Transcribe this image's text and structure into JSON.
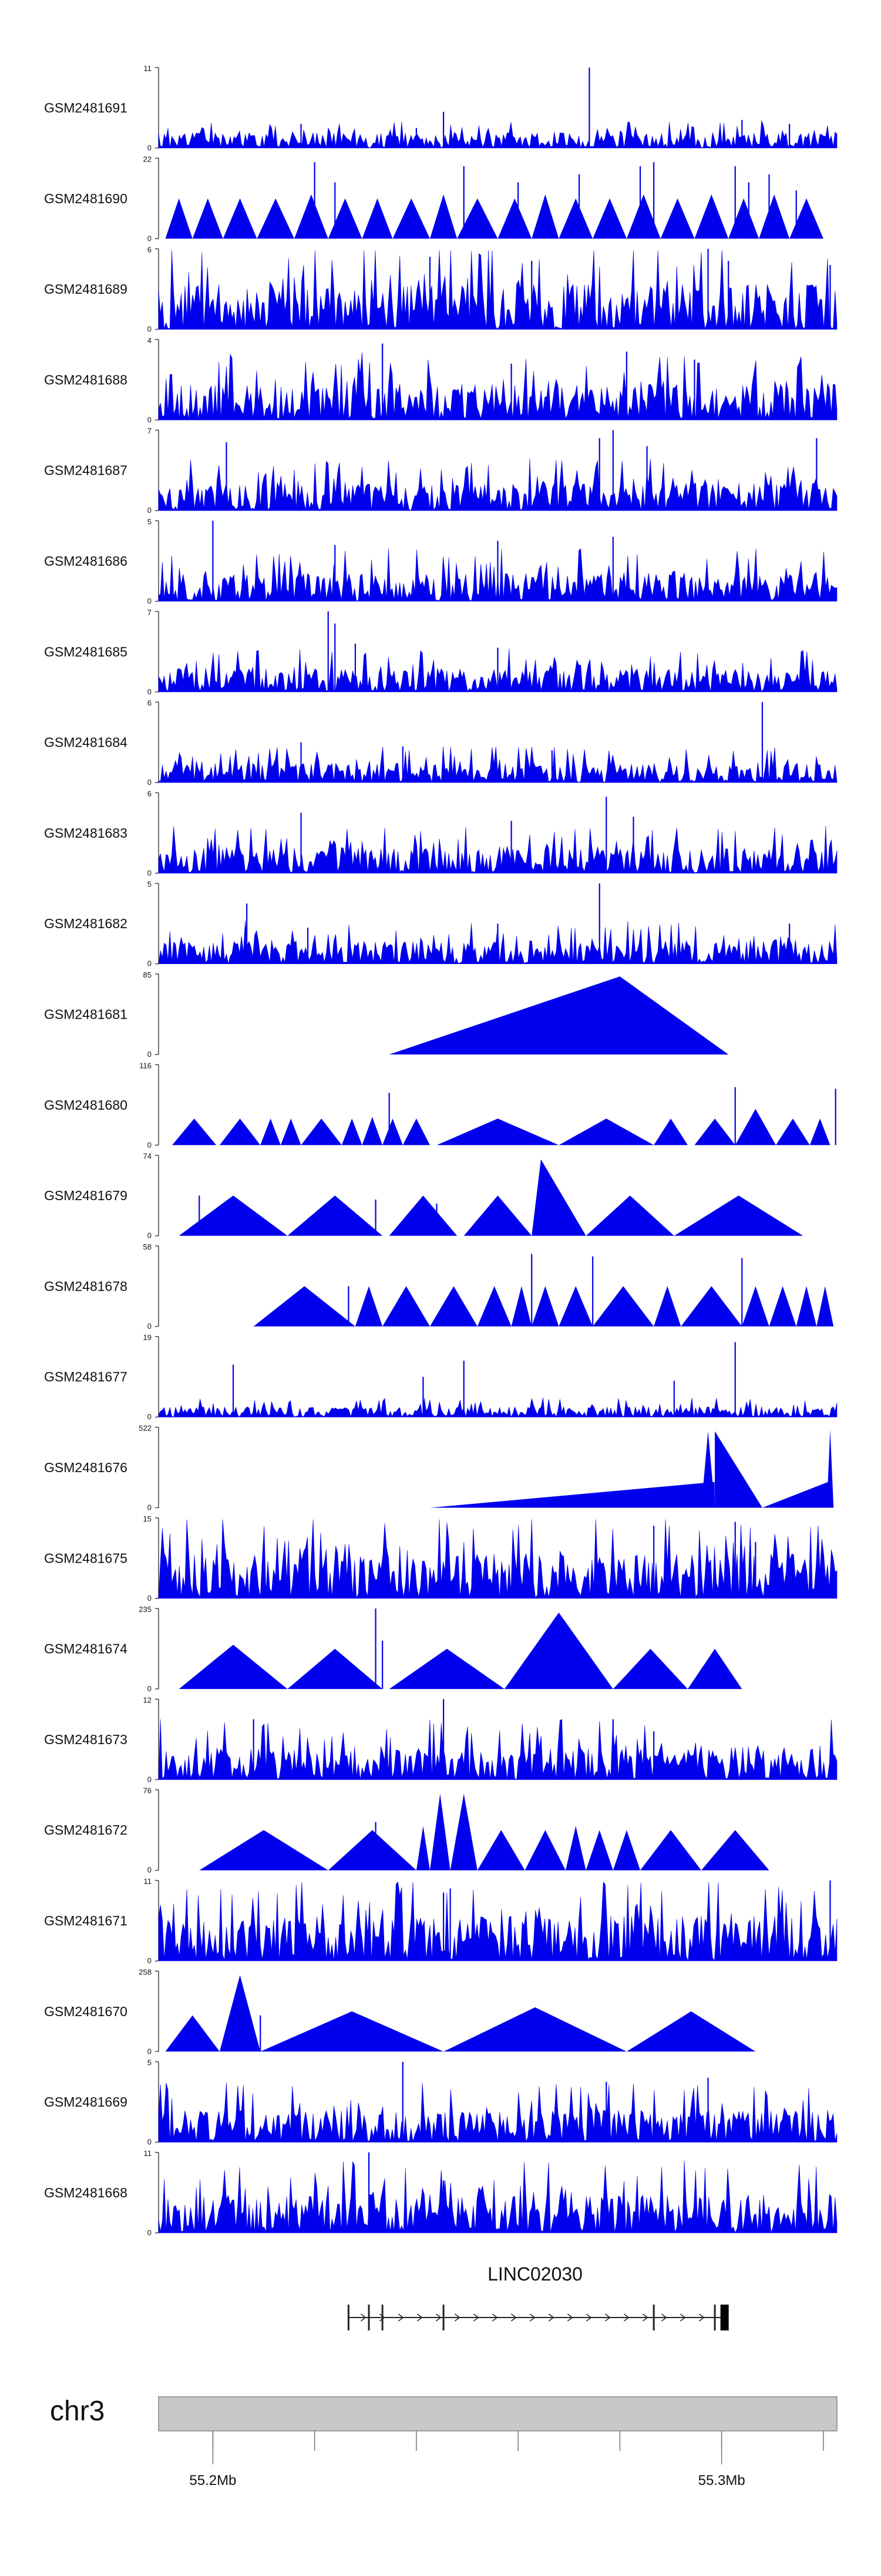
{
  "colors": {
    "track_fill": "#0000ee",
    "axis": "#444444",
    "chrom_band": "#c8c8c8",
    "gene": "#222222"
  },
  "chart_data": {
    "type": "area",
    "tracks": [
      {
        "name": "GSM2481691",
        "ymax": "11",
        "ymin": "0",
        "style": "noise",
        "level": 0.12,
        "seed": 11,
        "peaks": [
          [
            0.42,
            0.45
          ],
          [
            0.21,
            0.3
          ],
          [
            0.38,
            0.25
          ],
          [
            0.635,
            1.0
          ],
          [
            0.86,
            0.35
          ],
          [
            0.93,
            0.3
          ]
        ]
      },
      {
        "name": "GSM2481690",
        "ymax": "22",
        "ymin": "0",
        "style": "tri",
        "seed": 12,
        "tri": [
          [
            0.01,
            0.05,
            0.5
          ],
          [
            0.05,
            0.095,
            0.5
          ],
          [
            0.095,
            0.145,
            0.5
          ],
          [
            0.145,
            0.2,
            0.5
          ],
          [
            0.2,
            0.25,
            0.55
          ],
          [
            0.25,
            0.3,
            0.5
          ],
          [
            0.3,
            0.345,
            0.5
          ],
          [
            0.345,
            0.4,
            0.5
          ],
          [
            0.4,
            0.44,
            0.55
          ],
          [
            0.44,
            0.5,
            0.5
          ],
          [
            0.5,
            0.55,
            0.5
          ],
          [
            0.55,
            0.59,
            0.55
          ],
          [
            0.59,
            0.64,
            0.5
          ],
          [
            0.64,
            0.69,
            0.5
          ],
          [
            0.69,
            0.74,
            0.55
          ],
          [
            0.74,
            0.79,
            0.5
          ],
          [
            0.79,
            0.84,
            0.55
          ],
          [
            0.84,
            0.885,
            0.5
          ],
          [
            0.885,
            0.93,
            0.55
          ],
          [
            0.93,
            0.98,
            0.5
          ]
        ],
        "peaks": [
          [
            0.23,
            0.95
          ],
          [
            0.26,
            0.7
          ],
          [
            0.45,
            0.9
          ],
          [
            0.53,
            0.7
          ],
          [
            0.62,
            0.8
          ],
          [
            0.71,
            0.9
          ],
          [
            0.73,
            0.95
          ],
          [
            0.85,
            0.9
          ],
          [
            0.87,
            0.7
          ],
          [
            0.9,
            0.8
          ],
          [
            0.94,
            0.6
          ]
        ]
      },
      {
        "name": "GSM2481689",
        "ymax": "6",
        "ymin": "0",
        "style": "noise",
        "level": 0.35,
        "seed": 13,
        "peaks": [
          [
            0.4,
            0.9
          ],
          [
            0.55,
            0.85
          ],
          [
            0.81,
            1.0
          ],
          [
            0.84,
            0.85
          ],
          [
            0.99,
            0.8
          ]
        ]
      },
      {
        "name": "GSM2481688",
        "ymax": "4",
        "ymin": "0",
        "style": "noise",
        "level": 0.28,
        "seed": 14,
        "peaks": [
          [
            0.33,
            0.95
          ],
          [
            0.52,
            0.7
          ],
          [
            0.69,
            0.85
          ],
          [
            0.79,
            0.75
          ]
        ]
      },
      {
        "name": "GSM2481687",
        "ymax": "7",
        "ymin": "0",
        "style": "noise",
        "level": 0.22,
        "seed": 15,
        "peaks": [
          [
            0.1,
            0.85
          ],
          [
            0.65,
            0.9
          ],
          [
            0.67,
            1.0
          ],
          [
            0.72,
            0.8
          ],
          [
            0.97,
            0.9
          ]
        ]
      },
      {
        "name": "GSM2481686",
        "ymax": "5",
        "ymin": "0",
        "style": "noise",
        "level": 0.22,
        "seed": 16,
        "peaks": [
          [
            0.08,
            1.0
          ],
          [
            0.26,
            0.7
          ],
          [
            0.5,
            0.75
          ],
          [
            0.67,
            0.8
          ]
        ]
      },
      {
        "name": "GSM2481685",
        "ymax": "7",
        "ymin": "0",
        "style": "noise",
        "level": 0.18,
        "seed": 17,
        "peaks": [
          [
            0.25,
            1.0
          ],
          [
            0.26,
            0.85
          ],
          [
            0.29,
            0.6
          ],
          [
            0.5,
            0.55
          ]
        ]
      },
      {
        "name": "GSM2481684",
        "ymax": "6",
        "ymin": "0",
        "style": "noise",
        "level": 0.15,
        "seed": 18,
        "peaks": [
          [
            0.21,
            0.5
          ],
          [
            0.36,
            0.45
          ],
          [
            0.58,
            0.4
          ],
          [
            0.89,
            1.0
          ]
        ]
      },
      {
        "name": "GSM2481683",
        "ymax": "6",
        "ymin": "0",
        "style": "noise",
        "level": 0.2,
        "seed": 19,
        "peaks": [
          [
            0.21,
            0.75
          ],
          [
            0.52,
            0.65
          ],
          [
            0.66,
            0.95
          ],
          [
            0.7,
            0.7
          ]
        ]
      },
      {
        "name": "GSM2481682",
        "ymax": "5",
        "ymin": "0",
        "style": "noise",
        "level": 0.18,
        "seed": 20,
        "peaks": [
          [
            0.13,
            0.75
          ],
          [
            0.22,
            0.45
          ],
          [
            0.5,
            0.5
          ],
          [
            0.65,
            1.0
          ],
          [
            0.93,
            0.5
          ]
        ]
      },
      {
        "name": "GSM2481681",
        "ymax": "85",
        "ymin": "0",
        "style": "tri",
        "seed": 21,
        "tri": [
          [
            0.34,
            0.84,
            0.97,
            0.68
          ]
        ],
        "peaks": []
      },
      {
        "name": "GSM2481680",
        "ymax": "116",
        "ymin": "0",
        "style": "tri",
        "seed": 22,
        "tri": [
          [
            0.02,
            0.085,
            0.33
          ],
          [
            0.09,
            0.15,
            0.33
          ],
          [
            0.15,
            0.18,
            0.33
          ],
          [
            0.18,
            0.21,
            0.33
          ],
          [
            0.21,
            0.27,
            0.33
          ],
          [
            0.27,
            0.3,
            0.33
          ],
          [
            0.3,
            0.33,
            0.35
          ],
          [
            0.33,
            0.36,
            0.33
          ],
          [
            0.36,
            0.4,
            0.33
          ],
          [
            0.41,
            0.59,
            0.33
          ],
          [
            0.59,
            0.73,
            0.33
          ],
          [
            0.73,
            0.78,
            0.33
          ],
          [
            0.79,
            0.85,
            0.33
          ],
          [
            0.85,
            0.91,
            0.45
          ],
          [
            0.91,
            0.96,
            0.33
          ],
          [
            0.96,
            0.99,
            0.33
          ]
        ],
        "peaks": [
          [
            0.34,
            0.65
          ],
          [
            0.85,
            0.72
          ],
          [
            0.998,
            0.7
          ]
        ]
      },
      {
        "name": "GSM2481679",
        "ymax": "74",
        "ymin": "0",
        "style": "tri",
        "seed": 23,
        "tri": [
          [
            0.03,
            0.19,
            0.5
          ],
          [
            0.19,
            0.33,
            0.5
          ],
          [
            0.34,
            0.44,
            0.5
          ],
          [
            0.45,
            0.55,
            0.5
          ],
          [
            0.55,
            0.63,
            0.95,
            0.17
          ],
          [
            0.63,
            0.76,
            0.5
          ],
          [
            0.76,
            0.95,
            0.5
          ]
        ],
        "peaks": [
          [
            0.06,
            0.5
          ],
          [
            0.32,
            0.45
          ],
          [
            0.41,
            0.4
          ]
        ]
      },
      {
        "name": "GSM2481678",
        "ymax": "58",
        "ymin": "0",
        "style": "tri",
        "seed": 24,
        "tri": [
          [
            0.14,
            0.29,
            0.5
          ],
          [
            0.29,
            0.33,
            0.5
          ],
          [
            0.33,
            0.4,
            0.5
          ],
          [
            0.4,
            0.47,
            0.5
          ],
          [
            0.47,
            0.52,
            0.5
          ],
          [
            0.52,
            0.55,
            0.5
          ],
          [
            0.55,
            0.59,
            0.5
          ],
          [
            0.59,
            0.64,
            0.5
          ],
          [
            0.64,
            0.73,
            0.5
          ],
          [
            0.73,
            0.77,
            0.5
          ],
          [
            0.77,
            0.86,
            0.5
          ],
          [
            0.86,
            0.9,
            0.5
          ],
          [
            0.9,
            0.94,
            0.5
          ],
          [
            0.94,
            0.97,
            0.5
          ],
          [
            0.97,
            0.995,
            0.5
          ]
        ],
        "peaks": [
          [
            0.28,
            0.5
          ],
          [
            0.55,
            0.9
          ],
          [
            0.64,
            0.87
          ],
          [
            0.86,
            0.85
          ]
        ]
      },
      {
        "name": "GSM2481677",
        "ymax": "19",
        "ymin": "0",
        "style": "noise",
        "level": 0.08,
        "seed": 25,
        "peaks": [
          [
            0.11,
            0.65
          ],
          [
            0.39,
            0.5
          ],
          [
            0.45,
            0.7
          ],
          [
            0.76,
            0.45
          ],
          [
            0.85,
            0.93
          ]
        ]
      },
      {
        "name": "GSM2481676",
        "ymax": "522",
        "ymin": "0",
        "style": "tri",
        "seed": 26,
        "tri": [
          [
            0.4,
            0.82,
            0.32,
            0.999
          ],
          [
            0.8,
            0.82,
            0.95
          ],
          [
            0.82,
            0.89,
            0.95,
            0.0
          ],
          [
            0.89,
            0.99,
            0.33,
            0.999
          ],
          [
            0.985,
            0.995,
            0.97
          ]
        ],
        "peaks": []
      },
      {
        "name": "GSM2481675",
        "ymax": "15",
        "ymin": "0",
        "style": "noise",
        "level": 0.35,
        "seed": 27,
        "peaks": [
          [
            0.73,
            0.9
          ],
          [
            0.85,
            0.95
          ],
          [
            0.88,
            0.7
          ]
        ]
      },
      {
        "name": "GSM2481674",
        "ymax": "235",
        "ymin": "0",
        "style": "tri",
        "seed": 28,
        "tri": [
          [
            0.03,
            0.19,
            0.55
          ],
          [
            0.19,
            0.33,
            0.5
          ],
          [
            0.34,
            0.51,
            0.5
          ],
          [
            0.51,
            0.67,
            0.95
          ],
          [
            0.67,
            0.78,
            0.5
          ],
          [
            0.78,
            0.86,
            0.5
          ]
        ],
        "peaks": [
          [
            0.32,
            1.0
          ],
          [
            0.33,
            0.6
          ]
        ]
      },
      {
        "name": "GSM2481673",
        "ymax": "12",
        "ymin": "0",
        "style": "noise",
        "level": 0.25,
        "seed": 29,
        "peaks": [
          [
            0.14,
            0.75
          ],
          [
            0.42,
            1.0
          ],
          [
            0.67,
            0.75
          ],
          [
            0.73,
            0.6
          ]
        ]
      },
      {
        "name": "GSM2481672",
        "ymax": "76",
        "ymin": "0",
        "style": "tri",
        "seed": 30,
        "tri": [
          [
            0.06,
            0.25,
            0.5
          ],
          [
            0.25,
            0.38,
            0.5
          ],
          [
            0.38,
            0.4,
            0.55
          ],
          [
            0.4,
            0.43,
            0.95
          ],
          [
            0.43,
            0.47,
            0.95
          ],
          [
            0.47,
            0.54,
            0.5
          ],
          [
            0.54,
            0.6,
            0.5
          ],
          [
            0.6,
            0.63,
            0.55
          ],
          [
            0.63,
            0.67,
            0.5
          ],
          [
            0.67,
            0.71,
            0.5
          ],
          [
            0.71,
            0.8,
            0.5
          ],
          [
            0.8,
            0.9,
            0.5
          ]
        ],
        "peaks": [
          [
            0.12,
            0.3
          ],
          [
            0.32,
            0.6
          ]
        ]
      },
      {
        "name": "GSM2481671",
        "ymax": "11",
        "ymin": "0",
        "style": "noise",
        "level": 0.35,
        "seed": 31,
        "peaks": [
          [
            0.42,
            0.85
          ],
          [
            0.43,
            0.9
          ],
          [
            0.99,
            1.0
          ]
        ]
      },
      {
        "name": "GSM2481670",
        "ymax": "258",
        "ymin": "0",
        "style": "tri",
        "seed": 32,
        "tri": [
          [
            0.01,
            0.09,
            0.45
          ],
          [
            0.09,
            0.15,
            0.95
          ],
          [
            0.15,
            0.42,
            0.5
          ],
          [
            0.42,
            0.69,
            0.55
          ],
          [
            0.69,
            0.88,
            0.5
          ]
        ],
        "peaks": [
          [
            0.15,
            0.45
          ]
        ]
      },
      {
        "name": "GSM2481669",
        "ymax": "5",
        "ymin": "0",
        "style": "noise",
        "level": 0.25,
        "seed": 33,
        "peaks": [
          [
            0.36,
            1.0
          ],
          [
            0.66,
            0.75
          ],
          [
            0.81,
            0.8
          ]
        ]
      },
      {
        "name": "GSM2481668",
        "ymax": "11",
        "ymin": "0",
        "style": "noise",
        "level": 0.3,
        "seed": 34,
        "peaks": [
          [
            0.31,
            1.0
          ],
          [
            0.42,
            0.65
          ],
          [
            0.54,
            0.6
          ]
        ]
      }
    ],
    "gene": {
      "name": "LINC02030",
      "start_frac": 0.28,
      "end_frac": 0.83,
      "exons": [
        0.28,
        0.31,
        0.33,
        0.42,
        0.73,
        0.82,
        0.83
      ]
    },
    "ideogram": {
      "chromosome": "chr3"
    },
    "genome_axis": {
      "tick_fracs": [
        0.08,
        0.23,
        0.38,
        0.53,
        0.68,
        0.83,
        0.98
      ],
      "labels": [
        {
          "frac": 0.08,
          "text": "55.2Mb"
        },
        {
          "frac": 0.83,
          "text": "55.3Mb"
        }
      ]
    }
  }
}
